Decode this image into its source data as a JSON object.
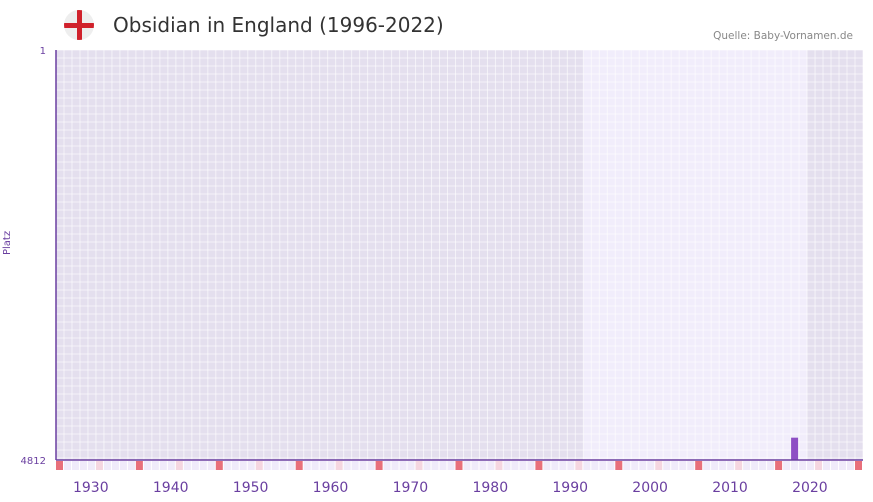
{
  "header": {
    "title": "Obsidian in England (1996-2022)",
    "source": "Quelle: Baby-Vornamen.de"
  },
  "chart_data": {
    "type": "bar",
    "title": "Obsidian in England (1996-2022)",
    "ylabel": "Platz",
    "ylim": [
      4812,
      1
    ],
    "y_ticks": [
      "1",
      "4812"
    ],
    "xlim": [
      1928,
      2028
    ],
    "x_ticks": [
      "1930",
      "1940",
      "1950",
      "1960",
      "1970",
      "1980",
      "1990",
      "2000",
      "2010",
      "2020"
    ],
    "data_range": [
      1994,
      2021
    ],
    "series": [
      {
        "name": "Obsidian",
        "x": [
          2020
        ],
        "values": [
          4550
        ]
      }
    ],
    "colors": {
      "bar": "#8e4fc4",
      "axis": "#6a3fa0",
      "decade_marker": "#e8707b"
    }
  }
}
